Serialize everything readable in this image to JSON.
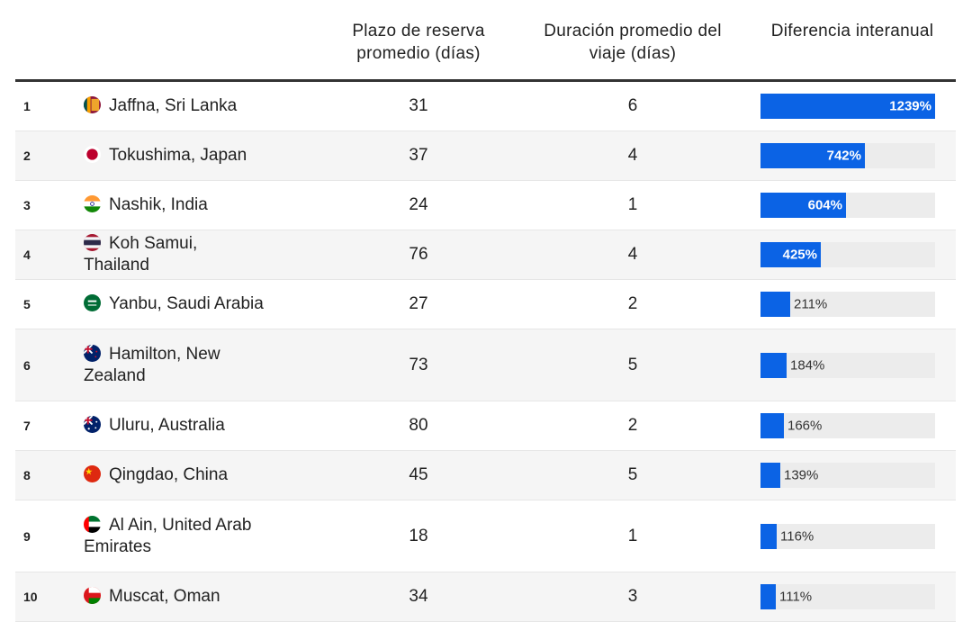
{
  "headers": {
    "destination": "",
    "plazo": "Plazo de reserva promedio (días)",
    "duracion": "Duración promedio del viaje (días)",
    "diferencia": "Diferencia interanual"
  },
  "colors": {
    "bar": "#0b63e5",
    "track": "#ececec"
  },
  "chart_data": {
    "type": "table",
    "columns": [
      "",
      "",
      "Plazo de reserva promedio (días)",
      "Duración promedio del viaje (días)",
      "Diferencia interanual"
    ],
    "max_diff": 1239,
    "rows": [
      {
        "rank": "1",
        "destination": "Jaffna, Sri Lanka",
        "flag": "sri-lanka-flag-icon",
        "plazo": "31",
        "duracion": "6",
        "diff": 1239,
        "diff_label": "1239%"
      },
      {
        "rank": "2",
        "destination": "Tokushima, Japan",
        "flag": "japan-flag-icon",
        "plazo": "37",
        "duracion": "4",
        "diff": 742,
        "diff_label": "742%"
      },
      {
        "rank": "3",
        "destination": "Nashik, India",
        "flag": "india-flag-icon",
        "plazo": "24",
        "duracion": "1",
        "diff": 604,
        "diff_label": "604%"
      },
      {
        "rank": "4",
        "destination": "Koh Samui, Thailand",
        "flag": "thailand-flag-icon",
        "plazo": "76",
        "duracion": "4",
        "diff": 425,
        "diff_label": "425%"
      },
      {
        "rank": "5",
        "destination": "Yanbu, Saudi Arabia",
        "flag": "saudi-arabia-flag-icon",
        "plazo": "27",
        "duracion": "2",
        "diff": 211,
        "diff_label": "211%"
      },
      {
        "rank": "6",
        "destination": "Hamilton, New Zealand",
        "flag": "new-zealand-flag-icon",
        "plazo": "73",
        "duracion": "5",
        "diff": 184,
        "diff_label": "184%"
      },
      {
        "rank": "7",
        "destination": "Uluru, Australia",
        "flag": "australia-flag-icon",
        "plazo": "80",
        "duracion": "2",
        "diff": 166,
        "diff_label": "166%"
      },
      {
        "rank": "8",
        "destination": "Qingdao, China",
        "flag": "china-flag-icon",
        "plazo": "45",
        "duracion": "5",
        "diff": 139,
        "diff_label": "139%"
      },
      {
        "rank": "9",
        "destination": "Al Ain, United Arab Emirates",
        "flag": "uae-flag-icon",
        "plazo": "18",
        "duracion": "1",
        "diff": 116,
        "diff_label": "116%"
      },
      {
        "rank": "10",
        "destination": "Muscat, Oman",
        "flag": "oman-flag-icon",
        "plazo": "34",
        "duracion": "3",
        "diff": 111,
        "diff_label": "111%"
      }
    ]
  }
}
